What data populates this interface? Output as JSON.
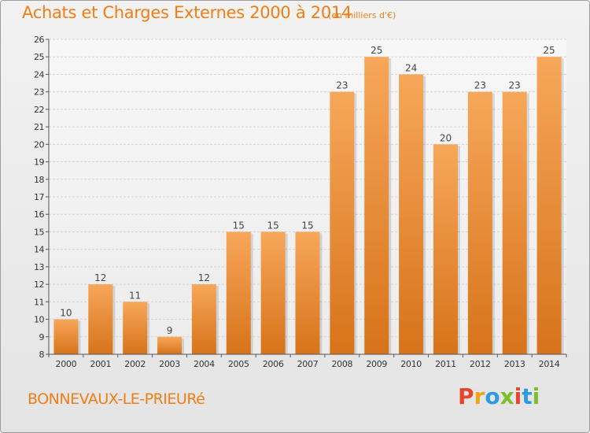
{
  "page": {
    "title": "Achats et Charges Externes 2000 à 2014",
    "subtitle": "(en milliers d'€)",
    "place": "BONNEVAUX-LE-PRIEURé",
    "brand": "Proxiti",
    "brand_colors": [
      "#e8452e",
      "#f0a21b",
      "#2f9ae0",
      "#7bbf2a",
      "#e8452e",
      "#2f9ae0",
      "#7bbf2a"
    ]
  },
  "chart_data": {
    "type": "bar",
    "title": "Achats et Charges Externes 2000 à 2014",
    "subtitle": "(en milliers d'€)",
    "categories": [
      "2000",
      "2001",
      "2002",
      "2003",
      "2004",
      "2005",
      "2006",
      "2007",
      "2008",
      "2009",
      "2010",
      "2011",
      "2012",
      "2013",
      "2014"
    ],
    "values": [
      10,
      12,
      11,
      9,
      12,
      15,
      15,
      15,
      23,
      25,
      24,
      20,
      23,
      23,
      25
    ],
    "ylim": [
      8,
      26
    ],
    "yticks": [
      8,
      9,
      10,
      11,
      12,
      13,
      14,
      15,
      16,
      17,
      18,
      19,
      20,
      21,
      22,
      23,
      24,
      25,
      26
    ],
    "grid": true,
    "bar_color_top": "#f7a75a",
    "bar_color_bottom": "#d7731a",
    "text_color": "#f07e16"
  }
}
